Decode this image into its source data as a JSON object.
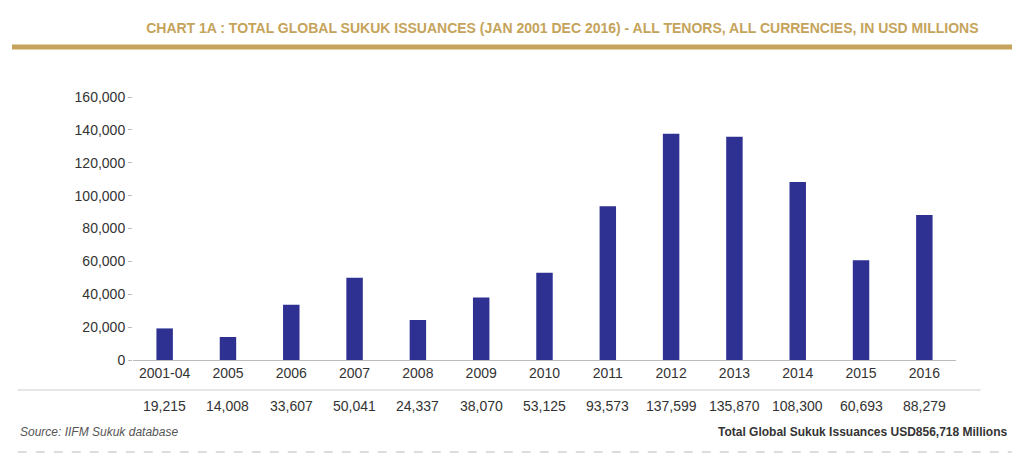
{
  "chart_data": {
    "type": "bar",
    "title": "CHART 1A : TOTAL GLOBAL SUKUK ISSUANCES (JAN 2001 DEC 2016) - ALL TENORS, ALL CURRENCIES, IN USD MILLIONS",
    "categories": [
      "2001-04",
      "2005",
      "2006",
      "2007",
      "2008",
      "2009",
      "2010",
      "2011",
      "2012",
      "2013",
      "2014",
      "2015",
      "2016"
    ],
    "values": [
      19215,
      14008,
      33607,
      50041,
      24337,
      38070,
      53125,
      93573,
      137599,
      135870,
      108300,
      60693,
      88279
    ],
    "value_labels": [
      "19,215",
      "14,008",
      "33,607",
      "50,041",
      "24,337",
      "38,070",
      "53,125",
      "93,573",
      "137,599",
      "135,870",
      "108,300",
      "60,693",
      "88,279"
    ],
    "color": "#2e3192",
    "ylim": [
      0,
      160000
    ],
    "yticks": [
      0,
      {
        "value": 20000,
        "label": "20,000"
      },
      {
        "value": 40000,
        "label": "40,000"
      },
      {
        "value": 60000,
        "label": "60,000"
      },
      {
        "value": 80000,
        "label": "80,000"
      },
      {
        "value": 100000,
        "label": "100,000"
      },
      {
        "value": 120000,
        "label": "120,000"
      },
      {
        "value": 140000,
        "label": "140,000"
      },
      {
        "value": 160000,
        "label": "160,000"
      }
    ],
    "grid": false,
    "annotations": [
      "Source: IIFM Sukuk database",
      "Total Global Sukuk Issuances USD856,718 Millions"
    ]
  }
}
